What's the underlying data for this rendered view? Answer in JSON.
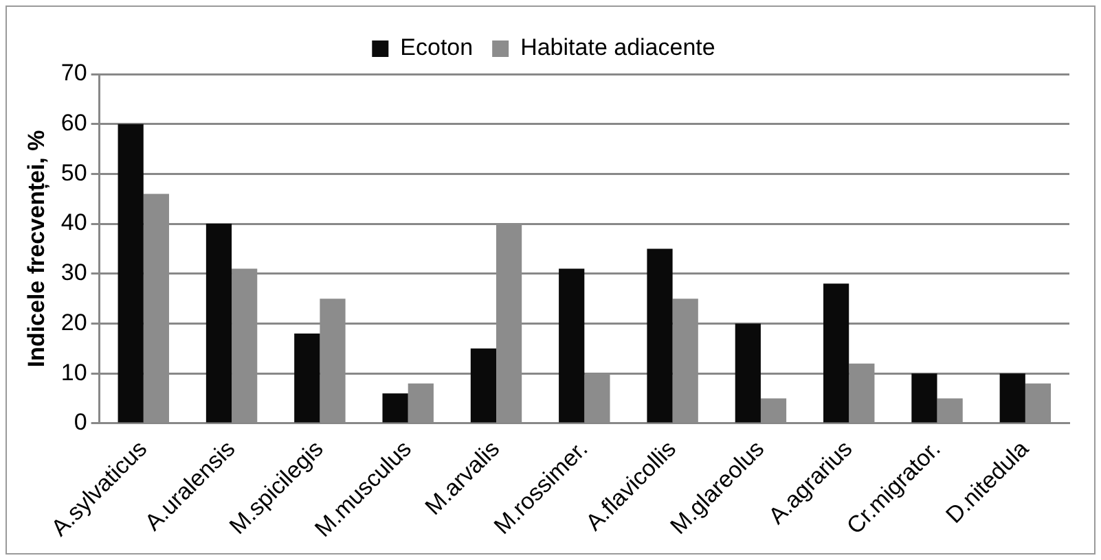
{
  "chart_data": {
    "type": "bar",
    "ylabel": "Indicele frecvenței, %",
    "categories": [
      "A.sylvaticus",
      "A.uralensis",
      "M.spicilegis",
      "M.musculus",
      "M.arvalis",
      "M.rossimer.",
      "A.flavicollis",
      "M.glareolus",
      "A.agrarius",
      "Cr.migrator.",
      "D.nitedula"
    ],
    "series": [
      {
        "name": "Ecoton",
        "color": "#0a0a0a",
        "values": [
          60,
          40,
          18,
          6,
          15,
          31,
          35,
          20,
          28,
          10,
          10
        ]
      },
      {
        "name": "Habitate adiacente",
        "color": "#8c8c8c",
        "values": [
          46,
          31,
          25,
          8,
          40,
          10,
          25,
          5,
          12,
          5,
          8
        ]
      }
    ],
    "ylim": [
      0,
      70
    ],
    "yticks": [
      0,
      10,
      20,
      30,
      40,
      50,
      60,
      70
    ],
    "grid": "y",
    "legend": "top"
  }
}
